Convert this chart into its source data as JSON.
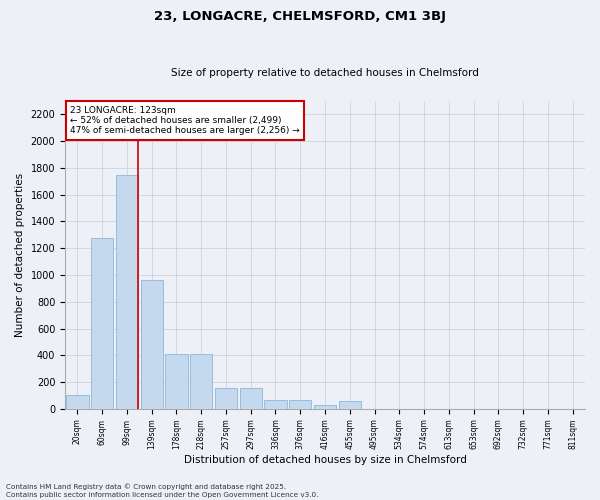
{
  "title_line1": "23, LONGACRE, CHELMSFORD, CM1 3BJ",
  "title_line2": "Size of property relative to detached houses in Chelmsford",
  "xlabel": "Distribution of detached houses by size in Chelmsford",
  "ylabel": "Number of detached properties",
  "annotation_line1": "23 LONGACRE: 123sqm",
  "annotation_line2": "← 52% of detached houses are smaller (2,499)",
  "annotation_line3": "47% of semi-detached houses are larger (2,256) →",
  "bins": [
    "20sqm",
    "60sqm",
    "99sqm",
    "139sqm",
    "178sqm",
    "218sqm",
    "257sqm",
    "297sqm",
    "336sqm",
    "376sqm",
    "416sqm",
    "455sqm",
    "495sqm",
    "534sqm",
    "574sqm",
    "613sqm",
    "653sqm",
    "692sqm",
    "732sqm",
    "771sqm",
    "811sqm"
  ],
  "bar_heights": [
    100,
    1280,
    1750,
    960,
    410,
    410,
    155,
    155,
    65,
    65,
    30,
    55,
    0,
    0,
    0,
    0,
    0,
    0,
    0,
    0,
    0
  ],
  "bar_color": "#c5d9ee",
  "bar_edge_color": "#7baed4",
  "vline_color": "#cc0000",
  "ylim": [
    0,
    2300
  ],
  "yticks": [
    0,
    200,
    400,
    600,
    800,
    1000,
    1200,
    1400,
    1600,
    1800,
    2000,
    2200
  ],
  "grid_color": "#c8cdd8",
  "bg_color": "#edf1f7",
  "annotation_box_color": "#cc0000",
  "footer_line1": "Contains HM Land Registry data © Crown copyright and database right 2025.",
  "footer_line2": "Contains public sector information licensed under the Open Government Licence v3.0."
}
